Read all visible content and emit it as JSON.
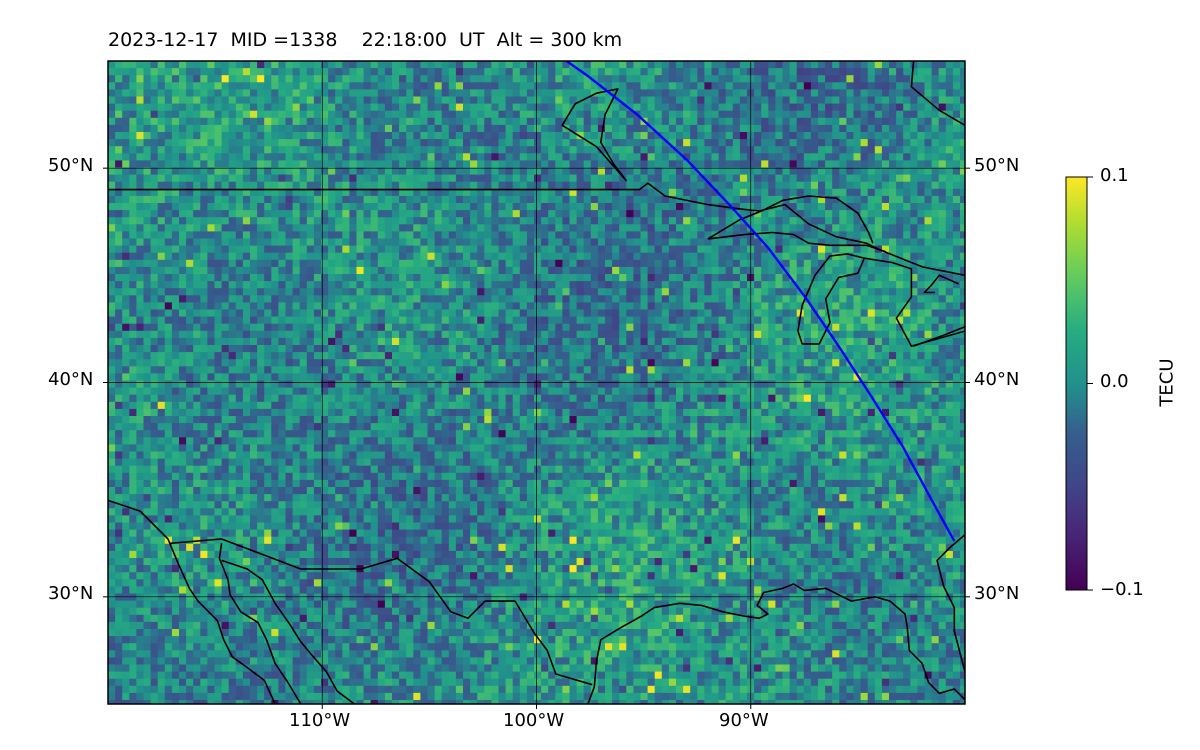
{
  "title": "2023-12-17  MID =1338    22:18:00  UT  Alt = 300 km",
  "map": {
    "lon_range": [
      -120,
      -80
    ],
    "lat_range": [
      25,
      55
    ],
    "grid": true,
    "lon_ticks": [
      -110,
      -100,
      -90
    ],
    "lat_ticks": [
      30,
      40,
      50
    ],
    "lon_tick_labels": [
      "110°W",
      "100°W",
      "90°W"
    ],
    "lat_tick_labels": [
      "30°N",
      "40°N",
      "50°N"
    ],
    "track_color": "#0000ff",
    "coast_color": "#000000",
    "track": [
      [
        -98.6,
        55.0
      ],
      [
        -97.6,
        54.3
      ],
      [
        -95.3,
        52.5
      ],
      [
        -93.0,
        50.4
      ],
      [
        -91.0,
        48.3
      ],
      [
        -89.2,
        46.3
      ],
      [
        -87.4,
        43.9
      ],
      [
        -85.9,
        41.7
      ],
      [
        -84.4,
        39.4
      ],
      [
        -82.9,
        37.0
      ],
      [
        -81.6,
        34.6
      ],
      [
        -80.5,
        32.6
      ]
    ],
    "coastlines": [
      [
        [
          -120,
          49.0
        ],
        [
          -95.2,
          49.0
        ],
        [
          -94.8,
          49.3
        ],
        [
          -94.0,
          48.7
        ],
        [
          -92.0,
          48.3
        ],
        [
          -90.5,
          48.1
        ],
        [
          -89.6,
          48.0
        ],
        [
          -88.4,
          48.3
        ],
        [
          -87.3,
          47.4
        ],
        [
          -86.0,
          46.8
        ],
        [
          -84.6,
          46.5
        ],
        [
          -84.0,
          46.2
        ],
        [
          -82.0,
          45.4
        ],
        [
          -80,
          45.0
        ]
      ],
      [
        [
          -92.0,
          46.7
        ],
        [
          -90.3,
          46.9
        ],
        [
          -89.0,
          47.0
        ],
        [
          -88.0,
          46.9
        ],
        [
          -87.3,
          46.5
        ],
        [
          -86.3,
          46.4
        ],
        [
          -84.6,
          46.4
        ],
        [
          -83.7,
          46.1
        ]
      ],
      [
        [
          -92.0,
          46.7
        ],
        [
          -90.5,
          47.6
        ],
        [
          -89.5,
          48.0
        ],
        [
          -88.5,
          48.5
        ],
        [
          -87.3,
          48.7
        ],
        [
          -86.0,
          48.6
        ],
        [
          -85.0,
          47.9
        ],
        [
          -84.5,
          47.0
        ],
        [
          -84.3,
          46.5
        ]
      ],
      [
        [
          -87.8,
          42.4
        ],
        [
          -87.6,
          43.6
        ],
        [
          -87.0,
          45.0
        ],
        [
          -86.3,
          45.9
        ],
        [
          -85.5,
          46.0
        ],
        [
          -84.7,
          45.8
        ],
        [
          -85.0,
          45.1
        ],
        [
          -85.9,
          44.9
        ],
        [
          -86.5,
          43.9
        ],
        [
          -86.3,
          42.8
        ],
        [
          -86.8,
          41.8
        ],
        [
          -87.6,
          41.8
        ],
        [
          -87.8,
          42.4
        ]
      ],
      [
        [
          -84.7,
          45.8
        ],
        [
          -83.4,
          45.6
        ],
        [
          -82.5,
          45.3
        ],
        [
          -82.5,
          44.0
        ],
        [
          -83.2,
          43.0
        ],
        [
          -82.5,
          41.7
        ],
        [
          -80,
          42.4
        ]
      ],
      [
        [
          -82.4,
          41.7
        ],
        [
          -81.0,
          42.2
        ],
        [
          -80,
          42.6
        ]
      ],
      [
        [
          -80.3,
          44.6
        ],
        [
          -81.2,
          45.0
        ],
        [
          -81.6,
          44.5
        ],
        [
          -81.9,
          44.2
        ],
        [
          -81.4,
          44.2
        ]
      ],
      [
        [
          -80,
          26.5
        ],
        [
          -80.5,
          28.4
        ],
        [
          -80.5,
          29.5
        ],
        [
          -81.0,
          30.5
        ],
        [
          -81.3,
          31.7
        ],
        [
          -80.7,
          32.3
        ],
        [
          -80,
          32.9
        ]
      ],
      [
        [
          -80,
          25.2
        ],
        [
          -80.5,
          25.7
        ],
        [
          -81.2,
          25.5
        ],
        [
          -81.7,
          26.0
        ],
        [
          -82.0,
          26.9
        ],
        [
          -82.6,
          27.5
        ],
        [
          -82.7,
          28.6
        ],
        [
          -82.8,
          29.2
        ],
        [
          -83.5,
          29.8
        ],
        [
          -84.2,
          30.0
        ],
        [
          -85.3,
          29.8
        ],
        [
          -86.5,
          30.4
        ],
        [
          -87.5,
          30.3
        ],
        [
          -88.0,
          30.6
        ],
        [
          -88.5,
          30.4
        ],
        [
          -89.4,
          30.2
        ],
        [
          -89.7,
          29.6
        ],
        [
          -89.2,
          29.2
        ],
        [
          -89.6,
          29.0
        ],
        [
          -90.3,
          29.1
        ],
        [
          -91.3,
          29.3
        ],
        [
          -92.3,
          29.6
        ],
        [
          -93.3,
          29.7
        ],
        [
          -94.5,
          29.5
        ],
        [
          -95.1,
          29.1
        ],
        [
          -96.0,
          28.6
        ],
        [
          -97.0,
          28.0
        ],
        [
          -97.2,
          27.0
        ],
        [
          -97.3,
          25.8
        ],
        [
          -97.6,
          25.0
        ]
      ],
      [
        [
          -120,
          34.5
        ],
        [
          -118.5,
          34.0
        ],
        [
          -117.2,
          32.7
        ],
        [
          -116.7,
          31.5
        ],
        [
          -116.2,
          30.4
        ],
        [
          -115.8,
          29.8
        ],
        [
          -114.9,
          28.9
        ],
        [
          -114.6,
          28.0
        ],
        [
          -114.2,
          27.2
        ],
        [
          -113.5,
          26.7
        ],
        [
          -112.7,
          26.1
        ],
        [
          -112.2,
          25.0
        ]
      ],
      [
        [
          -114.7,
          31.7
        ],
        [
          -113.5,
          31.3
        ],
        [
          -112.8,
          30.8
        ],
        [
          -112.2,
          29.7
        ],
        [
          -111.5,
          28.7
        ],
        [
          -111.0,
          27.9
        ],
        [
          -110.5,
          27.3
        ],
        [
          -109.8,
          26.5
        ],
        [
          -109.3,
          25.6
        ],
        [
          -108.5,
          25.0
        ]
      ],
      [
        [
          -117.1,
          32.5
        ],
        [
          -114.7,
          32.7
        ],
        [
          -111.0,
          31.3
        ],
        [
          -108.2,
          31.3
        ],
        [
          -106.5,
          31.8
        ],
        [
          -105.0,
          30.7
        ],
        [
          -104.0,
          29.3
        ],
        [
          -103.2,
          29.0
        ],
        [
          -102.4,
          29.8
        ],
        [
          -101.0,
          29.8
        ],
        [
          -100.1,
          28.3
        ],
        [
          -99.5,
          27.5
        ],
        [
          -99.1,
          26.4
        ],
        [
          -97.4,
          25.9
        ]
      ],
      [
        [
          -114.7,
          32.5
        ],
        [
          -114.8,
          31.8
        ],
        [
          -114.4,
          30.8
        ],
        [
          -114.3,
          30.1
        ],
        [
          -113.8,
          29.3
        ],
        [
          -113.0,
          28.8
        ],
        [
          -112.6,
          28.0
        ],
        [
          -112.2,
          26.9
        ],
        [
          -111.6,
          26.0
        ],
        [
          -111.0,
          25.0
        ]
      ],
      [
        [
          -95.8,
          49.4
        ],
        [
          -97.2,
          51.0
        ],
        [
          -98.8,
          52.0
        ],
        [
          -98.2,
          53.0
        ],
        [
          -97.2,
          53.5
        ],
        [
          -96.2,
          53.7
        ],
        [
          -96.8,
          52.5
        ],
        [
          -97.0,
          51.2
        ],
        [
          -96.4,
          50.2
        ],
        [
          -95.8,
          49.4
        ]
      ],
      [
        [
          -82.4,
          55.0
        ],
        [
          -82.5,
          53.8
        ],
        [
          -81.2,
          52.7
        ],
        [
          -80,
          52.0
        ]
      ]
    ]
  },
  "colorbar": {
    "label": "TECU",
    "min": -0.1,
    "max": 0.1,
    "tick_labels": [
      "0.1",
      "0.0",
      "−0.1"
    ],
    "colormap": "viridis"
  }
}
